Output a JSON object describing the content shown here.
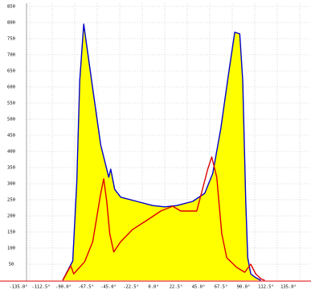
{
  "chart_data": {
    "type": "area",
    "xlim": [
      -135,
      135
    ],
    "ylim": [
      0,
      850
    ],
    "xticks": [
      {
        "value": -135,
        "label": "-135.0°"
      },
      {
        "value": -112.5,
        "label": "-112.5°"
      },
      {
        "value": -90,
        "label": "-90.0°"
      },
      {
        "value": -67.5,
        "label": "-67.5°"
      },
      {
        "value": -45,
        "label": "-45.0°"
      },
      {
        "value": -22.5,
        "label": "-22.5°"
      },
      {
        "value": 0,
        "label": "0.0°"
      },
      {
        "value": 22.5,
        "label": "22.5°"
      },
      {
        "value": 45,
        "label": "45.0°"
      },
      {
        "value": 67.5,
        "label": "67.5°"
      },
      {
        "value": 90,
        "label": "90.0°"
      },
      {
        "value": 112.5,
        "label": "112.5°"
      },
      {
        "value": 135,
        "label": "135.0°"
      }
    ],
    "yticks": [
      50,
      100,
      150,
      200,
      250,
      300,
      350,
      400,
      450,
      500,
      550,
      600,
      650,
      700,
      750,
      800,
      850
    ],
    "grid": true,
    "series": [
      {
        "fill": "#ffff00",
        "color": "#0000cc",
        "filled": true,
        "x": [
          -102,
          -92,
          -88,
          -85,
          -81,
          -72,
          -64,
          -56,
          -54,
          -50,
          -44,
          -28,
          -12,
          0,
          12,
          28,
          40,
          48,
          56,
          64,
          70,
          75,
          78,
          81,
          83,
          86,
          91,
          96
        ],
        "values": [
          0,
          60,
          300,
          620,
          795,
          595,
          420,
          320,
          345,
          282,
          258,
          245,
          232,
          228,
          232,
          245,
          270,
          332,
          470,
          645,
          770,
          765,
          620,
          245,
          70,
          20,
          8,
          0
        ]
      },
      {
        "color": "#dd0000",
        "filled": false,
        "x": [
          -102,
          -94,
          -91,
          -80,
          -72,
          -64,
          -61,
          -58,
          -55,
          -51,
          -44,
          -32,
          -16,
          -4,
          8,
          16,
          32,
          43,
          47,
          52,
          57,
          62,
          72,
          80,
          86,
          91,
          96,
          100
        ],
        "values": [
          0,
          45,
          20,
          58,
          120,
          270,
          315,
          245,
          145,
          88,
          120,
          158,
          190,
          215,
          230,
          215,
          215,
          345,
          383,
          320,
          145,
          70,
          40,
          25,
          50,
          20,
          5,
          0
        ]
      }
    ]
  }
}
